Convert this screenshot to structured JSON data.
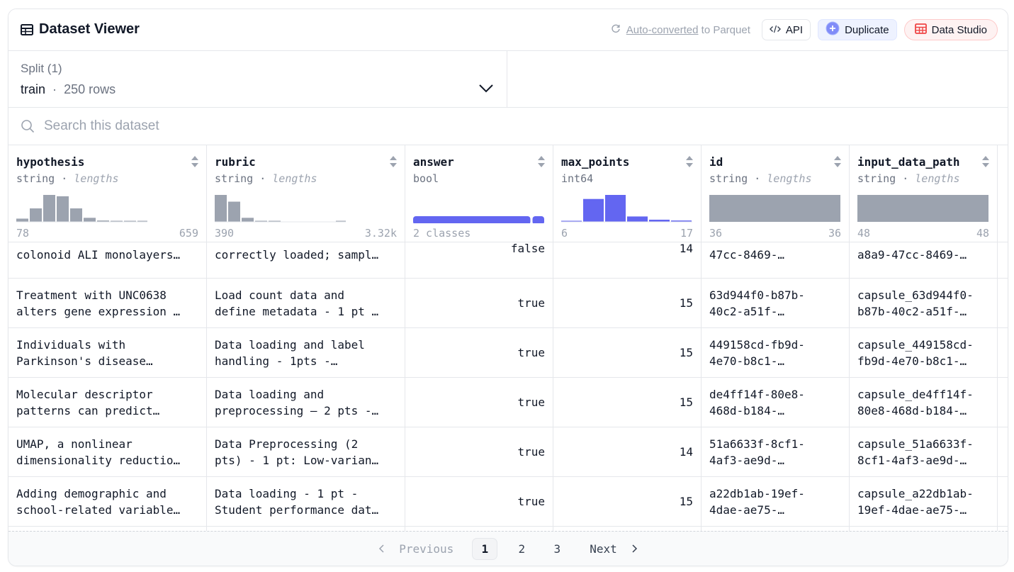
{
  "header": {
    "title": "Dataset Viewer",
    "converted_link": "Auto-converted",
    "converted_rest": "to Parquet",
    "api_label": "API",
    "duplicate_label": "Duplicate",
    "studio_label": "Data Studio"
  },
  "split": {
    "label": "Split (1)",
    "name": "train",
    "sep": "·",
    "rows": "250 rows"
  },
  "search": {
    "placeholder": "Search this dataset"
  },
  "columns": [
    {
      "name": "hypothesis",
      "type": "string",
      "stat": "lengths",
      "min": "78",
      "max": "659",
      "histogram": [
        0.12,
        0.5,
        1.0,
        0.95,
        0.5,
        0.15,
        0.05,
        0.03,
        0.03,
        0.03
      ]
    },
    {
      "name": "rubric",
      "type": "string",
      "stat": "lengths",
      "min": "390",
      "max": "3.32k",
      "histogram": [
        1.0,
        0.75,
        0.15,
        0.04,
        0.03,
        0,
        0,
        0,
        0,
        0.03
      ]
    },
    {
      "name": "answer",
      "type": "bool",
      "stat": "",
      "min": "2 classes",
      "max": "",
      "classes_fraction": 0.9
    },
    {
      "name": "max_points",
      "type": "int64",
      "stat": "",
      "min": "6",
      "max": "17",
      "histogram": [
        0.03,
        0.85,
        1.0,
        0.2,
        0.08,
        0.05
      ]
    },
    {
      "name": "id",
      "type": "string",
      "stat": "lengths",
      "min": "36",
      "max": "36",
      "histogram": [
        1.0
      ]
    },
    {
      "name": "input_data_path",
      "type": "string",
      "stat": "lengths",
      "min": "48",
      "max": "48",
      "histogram": [
        1.0
      ]
    }
  ],
  "partial_row": {
    "hypothesis": "colonoid ALI monolayers…",
    "rubric": "correctly loaded; sampl…",
    "answer": "false",
    "max_points": "14",
    "id": "47cc-8469-…",
    "input_data_path": "a8a9-47cc-8469-…"
  },
  "rows": [
    {
      "hypothesis": [
        "Treatment with UNC0638",
        "alters gene expression …"
      ],
      "rubric": [
        "Load count data and",
        "define metadata - 1 pt …"
      ],
      "answer": "true",
      "max_points": "15",
      "id": [
        "63d944f0-b87b-",
        "40c2-a51f-…"
      ],
      "input_data_path": [
        "capsule_63d944f0-",
        "b87b-40c2-a51f-…"
      ]
    },
    {
      "hypothesis": [
        "Individuals with",
        "Parkinson's disease…"
      ],
      "rubric": [
        "Data loading and label",
        "handling - 1pts -…"
      ],
      "answer": "true",
      "max_points": "15",
      "id": [
        "449158cd-fb9d-",
        "4e70-b8c1-…"
      ],
      "input_data_path": [
        "capsule_449158cd-",
        "fb9d-4e70-b8c1-…"
      ]
    },
    {
      "hypothesis": [
        "Molecular descriptor",
        "patterns can predict…"
      ],
      "rubric": [
        "Data loading and",
        "preprocessing – 2 pts -…"
      ],
      "answer": "true",
      "max_points": "15",
      "id": [
        "de4ff14f-80e8-",
        "468d-b184-…"
      ],
      "input_data_path": [
        "capsule_de4ff14f-",
        "80e8-468d-b184-…"
      ]
    },
    {
      "hypothesis": [
        "UMAP, a nonlinear",
        "dimensionality reductio…"
      ],
      "rubric": [
        "Data Preprocessing (2",
        "pts) - 1 pt: Low-varian…"
      ],
      "answer": "true",
      "max_points": "14",
      "id": [
        "51a6633f-8cf1-",
        "4af3-ae9d-…"
      ],
      "input_data_path": [
        "capsule_51a6633f-",
        "8cf1-4af3-ae9d-…"
      ]
    },
    {
      "hypothesis": [
        "Adding demographic and",
        "school-related variable…"
      ],
      "rubric": [
        "Data loading - 1 pt -",
        "Student performance dat…"
      ],
      "answer": "true",
      "max_points": "15",
      "id": [
        "a22db1ab-19ef-",
        "4dae-ae75-…"
      ],
      "input_data_path": [
        "capsule_a22db1ab-",
        "19ef-4dae-ae75-…"
      ]
    }
  ],
  "pagination": {
    "previous": "Previous",
    "pages": [
      "1",
      "2",
      "3"
    ],
    "current": "1",
    "next": "Next"
  },
  "colors": {
    "accent": "#6366f1",
    "histogram_gray": "#d1d5db",
    "id_bar": "#9ca3af"
  }
}
